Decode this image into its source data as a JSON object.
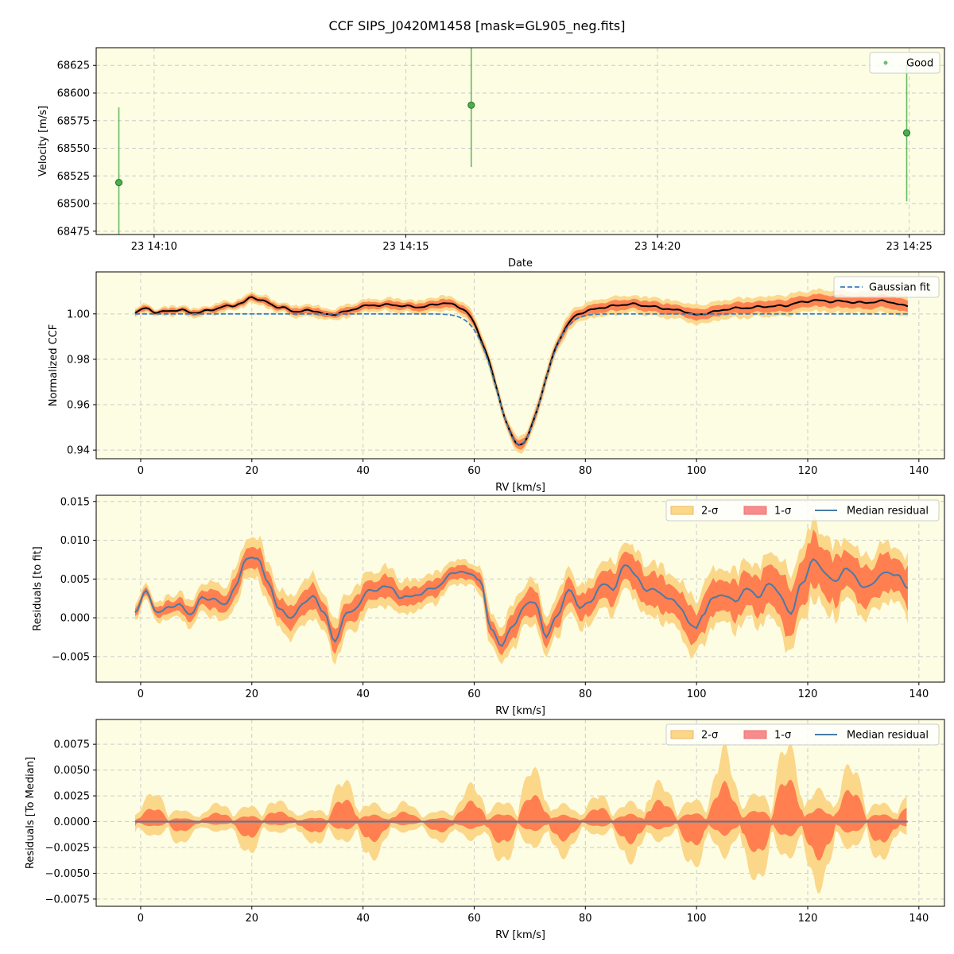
{
  "figure": {
    "title": "CCF SIPS_J0420M1458 [mask=GL905_neg.fits]",
    "background": "#ffffff",
    "panel_background": "#fdfde3",
    "grid_color": "#cccccc"
  },
  "colors": {
    "good": "#4caf50",
    "ccf": "#000000",
    "gaussian": "#3a7fc0",
    "median_residual": "#4a7aa8",
    "sigma1": "#ff7f50",
    "sigma2": "#fbd78a",
    "sigma1_legend": "#f88b8b"
  },
  "chart_data": [
    {
      "type": "scatter",
      "xlabel": "Date",
      "ylabel": "Velocity [m/s]",
      "x_unit": "minutes after 23 14:00",
      "xlim": [
        8.85,
        25.7
      ],
      "ylim": [
        68472,
        68641
      ],
      "xticks": [
        10,
        15,
        20,
        25
      ],
      "xtick_labels": [
        "23 14:10",
        "23 14:15",
        "23 14:20",
        "23 14:25"
      ],
      "yticks": [
        68475,
        68500,
        68525,
        68550,
        68575,
        68600,
        68625
      ],
      "legend": {
        "position": "top-right",
        "entries": [
          "Good"
        ]
      },
      "grid": true,
      "series": [
        {
          "name": "Good",
          "points": [
            {
              "x": 9.3,
              "y": 68519,
              "err": 68
            },
            {
              "x": 16.3,
              "y": 68589,
              "err": 56
            },
            {
              "x": 24.95,
              "y": 68564,
              "err": 62
            }
          ]
        }
      ]
    },
    {
      "type": "line",
      "xlabel": "RV [km/s]",
      "ylabel": "Normalized CCF",
      "xlim": [
        -8,
        144.6
      ],
      "ylim": [
        0.9362,
        1.0185
      ],
      "xticks": [
        0,
        20,
        40,
        60,
        80,
        100,
        120,
        140
      ],
      "yticks": [
        0.94,
        0.96,
        0.98,
        1.0
      ],
      "ytick_labels": [
        "0.94",
        "0.96",
        "0.98",
        "1.00"
      ],
      "legend": {
        "position": "top-right",
        "entries": [
          "Gaussian fit"
        ]
      },
      "grid": true,
      "x_range": [
        -1,
        138
      ],
      "gaussian": {
        "center": 68.2,
        "depth": 0.0575,
        "sigma": 4.0,
        "baseline": 1.0
      },
      "ccf_offsets": {
        "x": [
          -1,
          1,
          3,
          5,
          7,
          10,
          13,
          16,
          18,
          20,
          22,
          25,
          28,
          31,
          34,
          37,
          40,
          45,
          50,
          55,
          59,
          62,
          76,
          78,
          81,
          85,
          88,
          91,
          94,
          97,
          100,
          103,
          107,
          111,
          115,
          119,
          121,
          125,
          130,
          134,
          138
        ],
        "y": [
          0.0005,
          0.0025,
          0.0005,
          0.0015,
          0.0015,
          0.0005,
          0.002,
          0.0035,
          0.0045,
          0.0075,
          0.0055,
          0.003,
          0.001,
          0.0015,
          -0.0005,
          0.001,
          0.0035,
          0.004,
          0.003,
          0.0055,
          0.006,
          0.003,
          0.001,
          0.002,
          0.0025,
          0.0035,
          0.0045,
          0.0035,
          0.0025,
          0.0015,
          -0.0005,
          0.001,
          0.0025,
          0.003,
          0.0035,
          0.005,
          0.006,
          0.0055,
          0.005,
          0.0055,
          0.0035
        ]
      }
    },
    {
      "type": "area",
      "xlabel": "RV [km/s]",
      "ylabel": "Residuals [to fit]",
      "xlim": [
        -8,
        144.6
      ],
      "ylim": [
        -0.0083,
        0.0158
      ],
      "xticks": [
        0,
        20,
        40,
        60,
        80,
        100,
        120,
        140
      ],
      "yticks": [
        -0.005,
        0.0,
        0.005,
        0.01,
        0.015
      ],
      "ytick_labels": [
        "−0.005",
        "0.000",
        "0.005",
        "0.010",
        "0.015"
      ],
      "legend": {
        "position": "top-right",
        "entries": [
          "2-σ",
          "1-σ",
          "Median residual"
        ]
      },
      "grid": true,
      "median": {
        "x": [
          -1,
          1,
          3,
          5,
          7,
          9,
          11,
          13,
          15,
          17,
          19,
          20,
          21,
          23,
          25,
          27,
          29,
          31,
          33,
          35,
          37,
          39,
          41,
          45,
          47,
          50,
          53,
          57,
          60,
          61,
          63,
          65,
          67,
          69,
          71,
          73,
          75,
          77,
          79,
          81,
          83,
          85,
          87,
          89,
          91,
          93,
          95,
          97,
          99,
          100,
          101,
          103,
          105,
          107,
          109,
          111,
          113,
          115,
          117,
          119,
          121,
          123,
          125,
          127,
          130,
          132,
          134,
          136,
          138
        ],
        "y": [
          0.0005,
          0.0035,
          0.0005,
          0.0015,
          0.0015,
          0.0005,
          0.0025,
          0.0025,
          0.0015,
          0.004,
          0.0075,
          0.008,
          0.0075,
          0.0045,
          0.001,
          0.0,
          0.0015,
          0.003,
          0.0005,
          -0.003,
          0.0005,
          0.0015,
          0.0035,
          0.004,
          0.0025,
          0.003,
          0.004,
          0.006,
          0.0055,
          0.005,
          -0.0015,
          -0.0035,
          -0.001,
          0.0015,
          0.002,
          -0.0025,
          0.0005,
          0.0035,
          0.0015,
          0.002,
          0.0045,
          0.0035,
          0.007,
          0.0055,
          0.0035,
          0.0035,
          0.0025,
          0.0015,
          -0.001,
          -0.0015,
          0.0005,
          0.0025,
          0.003,
          0.002,
          0.004,
          0.0025,
          0.0045,
          0.003,
          0.0005,
          0.0045,
          0.0075,
          0.006,
          0.0045,
          0.0065,
          0.004,
          0.0045,
          0.006,
          0.0055,
          0.004
        ]
      },
      "band_1sigma_halfwidth": {
        "x": [
          -1,
          20,
          40,
          60,
          65,
          70,
          75,
          90,
          100,
          110,
          120,
          130,
          138
        ],
        "y": [
          0.0005,
          0.0015,
          0.0015,
          0.0008,
          0.0015,
          0.0018,
          0.0015,
          0.0022,
          0.0022,
          0.0025,
          0.0035,
          0.0025,
          0.0025
        ]
      },
      "band_2sigma_halfwidth": {
        "x": [
          -1,
          20,
          40,
          60,
          65,
          70,
          75,
          90,
          100,
          110,
          120,
          130,
          138
        ],
        "y": [
          0.001,
          0.0028,
          0.0028,
          0.0015,
          0.0028,
          0.003,
          0.0028,
          0.0035,
          0.0038,
          0.004,
          0.0055,
          0.004,
          0.004
        ]
      }
    },
    {
      "type": "area",
      "xlabel": "RV [km/s]",
      "ylabel": "Residuals [To Median]",
      "xlim": [
        -8,
        144.6
      ],
      "ylim": [
        -0.0082,
        0.0099
      ],
      "xticks": [
        0,
        20,
        40,
        60,
        80,
        100,
        120,
        140
      ],
      "yticks": [
        -0.0075,
        -0.005,
        -0.0025,
        0.0,
        0.0025,
        0.005,
        0.0075
      ],
      "ytick_labels": [
        "−0.0075",
        "−0.0050",
        "−0.0025",
        "0.0000",
        "0.0025",
        "0.0050",
        "0.0075"
      ],
      "legend": {
        "position": "top-right",
        "entries": [
          "2-σ",
          "1-σ",
          "Median residual"
        ]
      },
      "grid": true,
      "median_value": 0.0,
      "envelope_1sigma": {
        "x": [
          -1,
          5,
          10,
          15,
          20,
          25,
          30,
          35,
          40,
          45,
          50,
          55,
          60,
          65,
          70,
          75,
          80,
          85,
          90,
          95,
          100,
          105,
          110,
          115,
          120,
          125,
          130,
          135,
          138
        ],
        "y": [
          0.0012,
          0.0015,
          0.0006,
          0.001,
          0.0018,
          0.001,
          0.0009,
          0.0022,
          0.0025,
          0.0013,
          0.0007,
          0.0012,
          0.0022,
          0.0022,
          0.0028,
          0.0022,
          0.0011,
          0.0018,
          0.0025,
          0.002,
          0.0025,
          0.004,
          0.003,
          0.0045,
          0.004,
          0.0035,
          0.003,
          0.0018,
          0.0025
        ]
      },
      "envelope_2sigma": {
        "x": [
          -1,
          5,
          10,
          15,
          20,
          25,
          30,
          35,
          40,
          45,
          50,
          55,
          60,
          65,
          70,
          75,
          80,
          85,
          90,
          95,
          100,
          105,
          110,
          115,
          120,
          125,
          130,
          135,
          138
        ],
        "y": [
          0.0022,
          0.003,
          0.001,
          0.0018,
          0.0032,
          0.0018,
          0.0016,
          0.0038,
          0.0045,
          0.0022,
          0.0013,
          0.002,
          0.0038,
          0.0038,
          0.0055,
          0.0038,
          0.002,
          0.003,
          0.0045,
          0.0035,
          0.0045,
          0.0075,
          0.0055,
          0.008,
          0.0072,
          0.006,
          0.0052,
          0.003,
          0.004
        ]
      }
    }
  ]
}
